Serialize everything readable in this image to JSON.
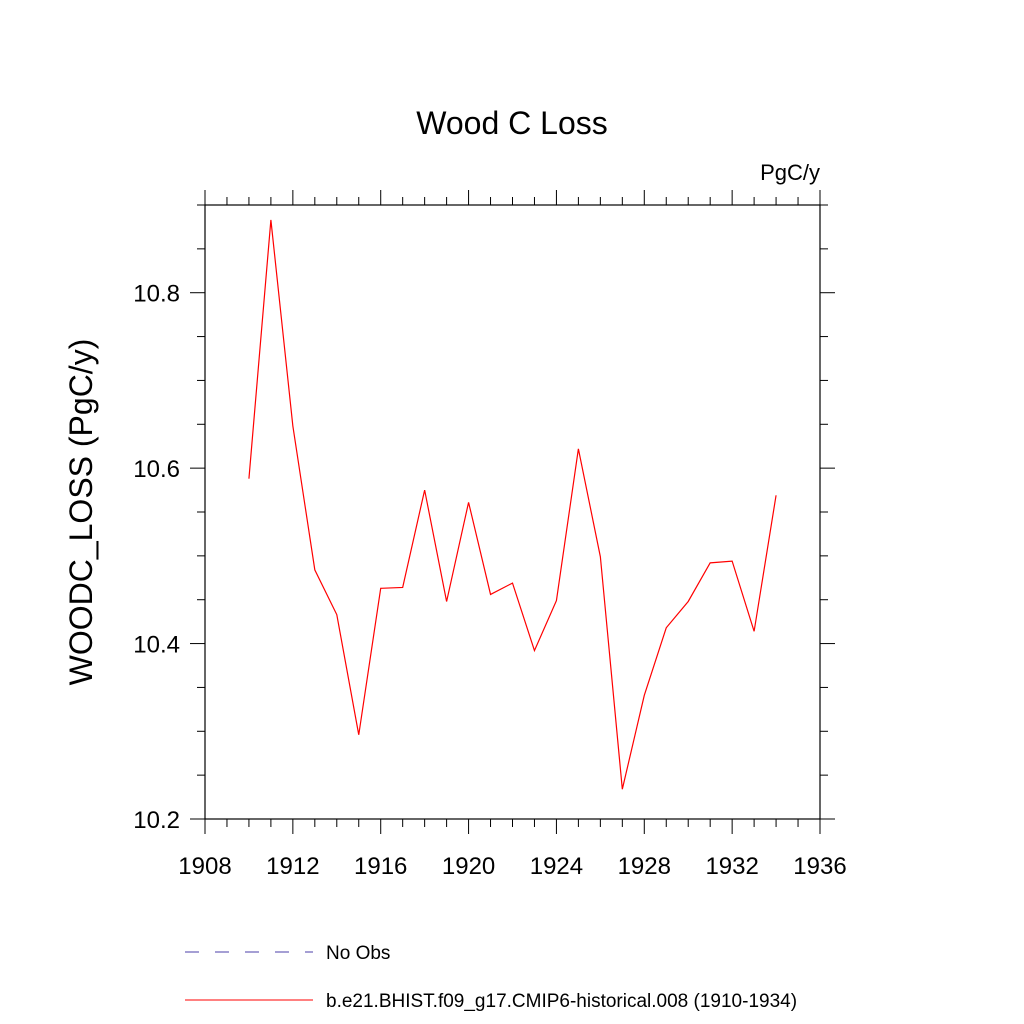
{
  "chart_data": {
    "type": "line",
    "title": "Wood C Loss",
    "units_label": "PgC/y",
    "xlabel": "",
    "ylabel": "WOODC_LOSS  (PgC/y)",
    "xlim": [
      1908,
      1936
    ],
    "ylim": [
      10.2,
      10.9
    ],
    "x_ticks": [
      1908,
      1912,
      1916,
      1920,
      1924,
      1928,
      1932,
      1936
    ],
    "x_tick_labels": [
      "1908",
      "1912",
      "1916",
      "1920",
      "1924",
      "1928",
      "1932",
      "1936"
    ],
    "y_ticks": [
      10.2,
      10.4,
      10.6,
      10.8
    ],
    "y_tick_labels": [
      "10.2",
      "10.4",
      "10.6",
      "10.8"
    ],
    "x_minor_step": 1,
    "y_minor_step": 0.05,
    "grid": false,
    "series": [
      {
        "name": "No Obs",
        "color": "#4b3fa8",
        "dash": "dashed",
        "x": [],
        "values": []
      },
      {
        "name": "b.e21.BHIST.f09_g17.CMIP6-historical.008 (1910-1934)",
        "color": "#ff0000",
        "dash": "solid",
        "x": [
          1910,
          1911,
          1912,
          1913,
          1914,
          1915,
          1916,
          1917,
          1918,
          1919,
          1920,
          1921,
          1922,
          1923,
          1924,
          1925,
          1926,
          1927,
          1928,
          1929,
          1930,
          1931,
          1932,
          1933,
          1934
        ],
        "values": [
          10.588,
          10.883,
          10.648,
          10.484,
          10.433,
          10.296,
          10.463,
          10.464,
          10.575,
          10.448,
          10.561,
          10.456,
          10.469,
          10.392,
          10.449,
          10.622,
          10.499,
          10.234,
          10.341,
          10.418,
          10.448,
          10.492,
          10.494,
          10.414,
          10.569
        ]
      }
    ],
    "legend": [
      {
        "label": "No Obs",
        "color": "#4b3fa8",
        "dash": "dashed"
      },
      {
        "label": "b.e21.BHIST.f09_g17.CMIP6-historical.008 (1910-1934)",
        "color": "#ff0000",
        "dash": "solid"
      }
    ]
  }
}
